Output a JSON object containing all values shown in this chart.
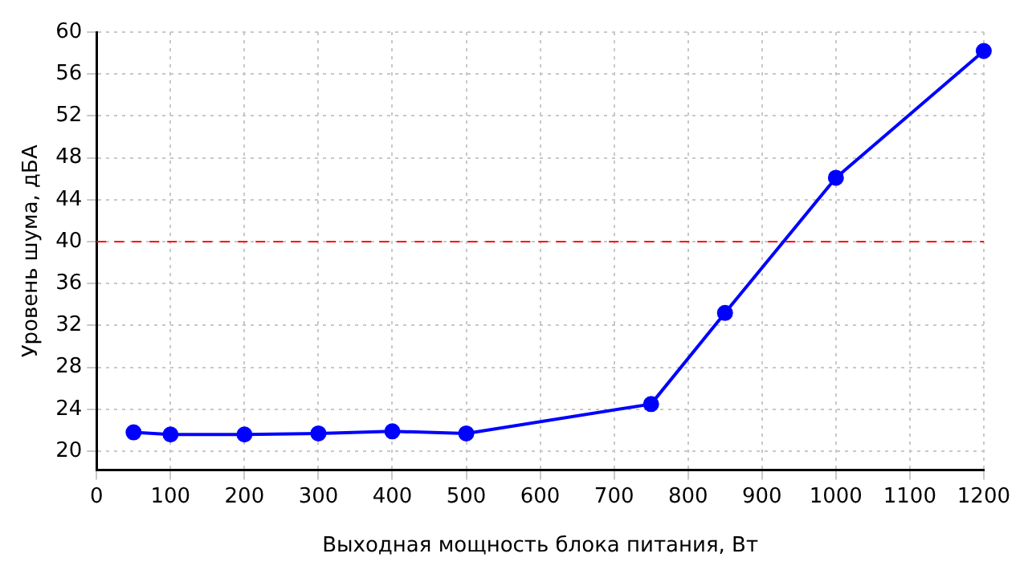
{
  "chart_data": {
    "type": "line",
    "xlabel": "Выходная мощность блока питания, Вт",
    "ylabel": "Уровень шума, дБА",
    "x": [
      50,
      100,
      200,
      300,
      400,
      500,
      750,
      850,
      1000,
      1200
    ],
    "series": [
      {
        "color": "#0000ff",
        "values": [
          21.8,
          21.6,
          21.6,
          21.7,
          21.9,
          21.7,
          24.5,
          33.2,
          46.1,
          58.2
        ]
      }
    ],
    "xlim": [
      0,
      1200
    ],
    "xticks": [
      0,
      100,
      200,
      300,
      400,
      500,
      600,
      700,
      800,
      900,
      1000,
      1100,
      1200
    ],
    "ylim": [
      18.2,
      60
    ],
    "yticks": [
      20,
      24,
      28,
      32,
      36,
      40,
      44,
      48,
      52,
      56,
      60
    ],
    "ref_lines": [
      {
        "axis": "y",
        "value": 40,
        "color": "#ff0000",
        "line_style": "dashed"
      }
    ],
    "grid": true,
    "marker": "circle",
    "line_style": "solid",
    "legend": false
  }
}
